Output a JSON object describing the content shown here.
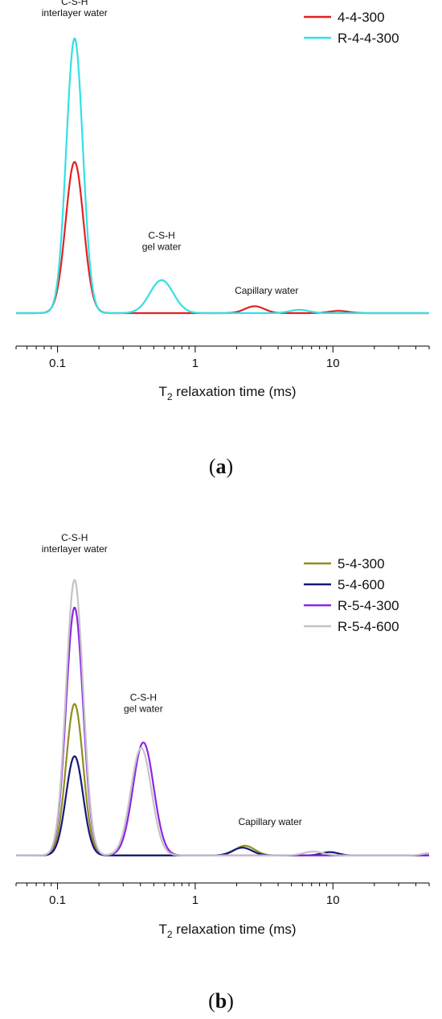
{
  "chart_data": [
    {
      "type": "line",
      "panel_label": "(a)",
      "panel_letter": "a",
      "xlabel": "T2 relaxation time (ms)",
      "xlabel_main": "T",
      "xlabel_sub": "2",
      "xlabel_rest": " relaxation time (ms)",
      "x_scale": "log",
      "xlim": [
        0.05,
        50
      ],
      "xticks": [
        0.1,
        1,
        10
      ],
      "xtick_labels": [
        "0.1",
        "1",
        "10"
      ],
      "ylim": [
        -0.12,
        1.08
      ],
      "yaxis_visible": false,
      "grid": false,
      "legend_position": "top-right",
      "annotations": [
        {
          "lines": [
            "C-S-H",
            "interlayer water"
          ],
          "x": 0.133,
          "y": 1.08
        },
        {
          "lines": [
            "C-S-H",
            "gel water"
          ],
          "x": 0.57,
          "y": 0.23
        },
        {
          "lines": [
            "Capillary water"
          ],
          "x": 3.3,
          "y": 0.07
        }
      ],
      "series": [
        {
          "name": "4-4-300",
          "color": "#e32222",
          "peaks": [
            {
              "center": 0.133,
              "height": 0.55,
              "width": 0.065
            },
            {
              "center": 2.7,
              "height": 0.025,
              "width": 0.07
            },
            {
              "center": 11,
              "height": 0.008,
              "width": 0.07
            }
          ]
        },
        {
          "name": "R-4-4-300",
          "color": "#33e0e6",
          "peaks": [
            {
              "center": 0.133,
              "height": 1.0,
              "width": 0.06
            },
            {
              "center": 0.57,
              "height": 0.12,
              "width": 0.085
            },
            {
              "center": 5.7,
              "height": 0.012,
              "width": 0.07
            }
          ]
        }
      ]
    },
    {
      "type": "line",
      "panel_label": "(b)",
      "panel_letter": "b",
      "xlabel": "T2 relaxation time (ms)",
      "xlabel_main": "T",
      "xlabel_sub": "2",
      "xlabel_rest": " relaxation time (ms)",
      "x_scale": "log",
      "xlim": [
        0.05,
        50
      ],
      "xticks": [
        0.1,
        1,
        10
      ],
      "xtick_labels": [
        "0.1",
        "1",
        "10"
      ],
      "ylim": [
        -0.1,
        1.1
      ],
      "yaxis_visible": false,
      "grid": false,
      "legend_position": "top-right",
      "annotations": [
        {
          "lines": [
            "C-S-H",
            "interlayer water"
          ],
          "x": 0.133,
          "y": 1.1
        },
        {
          "lines": [
            "C-S-H",
            "gel water"
          ],
          "x": 0.42,
          "y": 0.52
        },
        {
          "lines": [
            "Capillary water"
          ],
          "x": 3.5,
          "y": 0.11
        }
      ],
      "series": [
        {
          "name": "5-4-300",
          "color": "#8f8f1e",
          "peaks": [
            {
              "center": 0.133,
              "height": 0.55,
              "width": 0.062
            },
            {
              "center": 2.3,
              "height": 0.035,
              "width": 0.07
            }
          ]
        },
        {
          "name": "5-4-600",
          "color": "#16187a",
          "peaks": [
            {
              "center": 0.133,
              "height": 0.36,
              "width": 0.062
            },
            {
              "center": 2.2,
              "height": 0.028,
              "width": 0.07
            },
            {
              "center": 9.5,
              "height": 0.012,
              "width": 0.06
            }
          ]
        },
        {
          "name": "R-5-4-300",
          "color": "#8e24e6",
          "peaks": [
            {
              "center": 0.133,
              "height": 0.9,
              "width": 0.062
            },
            {
              "center": 0.42,
              "height": 0.41,
              "width": 0.075
            }
          ]
        },
        {
          "name": "R-5-4-600",
          "color": "#c4c4c4",
          "peaks": [
            {
              "center": 0.133,
              "height": 1.0,
              "width": 0.062
            },
            {
              "center": 0.405,
              "height": 0.39,
              "width": 0.075
            },
            {
              "center": 7.2,
              "height": 0.014,
              "width": 0.07
            },
            {
              "center": 50,
              "height": 0.008,
              "width": 0.05
            }
          ]
        }
      ]
    }
  ]
}
